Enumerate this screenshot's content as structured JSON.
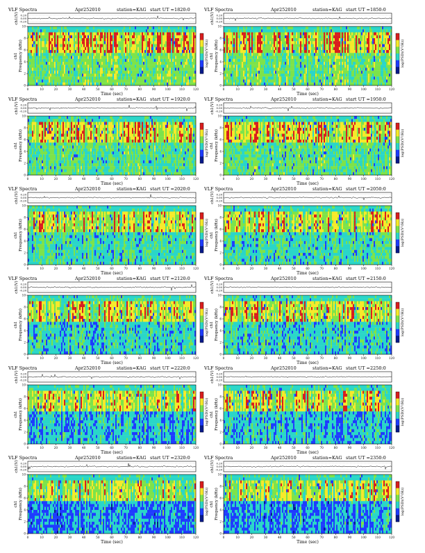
{
  "panel_labels": {
    "title_left": "VLF Spectra",
    "date": "Apr252010",
    "station": "station=KAG",
    "start_prefix": "start  UT  =",
    "waveform_ylabel": "ch1(V)",
    "spectrogram_ylabel_top": "ch1",
    "spectrogram_ylabel": "Frequency (kHz)",
    "xlabel": "Time (sec)",
    "colorbar_label": "log(PSD)(V²/Hz)"
  },
  "colors": {
    "low": "#1e3cff",
    "cyan": "#2ad6c8",
    "green": "#7de34a",
    "yellow": "#f6e92a",
    "red": "#d81e1e",
    "deep_blue": "#061a8c"
  },
  "chart_data": [
    {
      "type": "heatmap",
      "start_ut": "1820:0",
      "x_ticks": [
        0,
        10,
        20,
        30,
        40,
        50,
        60,
        70,
        80,
        90,
        100,
        110,
        120
      ],
      "y_ticks": [
        0,
        2,
        4,
        6,
        8,
        10
      ],
      "wave_ticks": [
        "0.20",
        "0.00",
        "-0.20"
      ],
      "xlim": [
        0,
        120
      ],
      "ylim": [
        0,
        10
      ]
    },
    {
      "type": "heatmap",
      "start_ut": "1850:0",
      "x_ticks": [
        0,
        10,
        20,
        30,
        40,
        50,
        60,
        70,
        80,
        90,
        100,
        110,
        120
      ],
      "y_ticks": [
        0,
        2,
        4,
        6,
        8,
        10
      ],
      "wave_ticks": [
        "0.20",
        "0.00",
        "-0.20"
      ],
      "xlim": [
        0,
        120
      ],
      "ylim": [
        0,
        10
      ]
    },
    {
      "type": "heatmap",
      "start_ut": "1920:0",
      "x_ticks": [
        0,
        10,
        20,
        30,
        40,
        50,
        60,
        70,
        80,
        90,
        100,
        110,
        120
      ],
      "y_ticks": [
        0,
        2,
        4,
        6,
        8,
        10
      ],
      "wave_ticks": [
        "0.20",
        "0.00",
        "-0.20"
      ],
      "xlim": [
        0,
        120
      ],
      "ylim": [
        0,
        10
      ]
    },
    {
      "type": "heatmap",
      "start_ut": "1950:0",
      "x_ticks": [
        0,
        10,
        20,
        30,
        40,
        50,
        60,
        70,
        80,
        90,
        100,
        110,
        120
      ],
      "y_ticks": [
        0,
        2,
        4,
        6,
        8,
        10
      ],
      "wave_ticks": [
        "0.20",
        "0.00",
        "-0.20"
      ],
      "xlim": [
        0,
        120
      ],
      "ylim": [
        0,
        10
      ]
    },
    {
      "type": "heatmap",
      "start_ut": "2020:0",
      "x_ticks": [
        0,
        10,
        20,
        30,
        40,
        50,
        60,
        70,
        80,
        90,
        100,
        110,
        120
      ],
      "y_ticks": [
        0,
        2,
        4,
        6,
        8,
        10
      ],
      "wave_ticks": [
        "0.20",
        "0.00",
        "-0.20"
      ],
      "xlim": [
        0,
        120
      ],
      "ylim": [
        0,
        10
      ]
    },
    {
      "type": "heatmap",
      "start_ut": "2050:0",
      "x_ticks": [
        0,
        10,
        20,
        30,
        40,
        50,
        60,
        70,
        80,
        90,
        100,
        110,
        120
      ],
      "y_ticks": [
        0,
        2,
        4,
        6,
        8,
        10
      ],
      "wave_ticks": [
        "0.20",
        "0.00",
        "-0.20"
      ],
      "xlim": [
        0,
        120
      ],
      "ylim": [
        0,
        10
      ]
    },
    {
      "type": "heatmap",
      "start_ut": "2120:0",
      "x_ticks": [
        0,
        10,
        20,
        30,
        40,
        50,
        60,
        70,
        80,
        90,
        100,
        110,
        120
      ],
      "y_ticks": [
        0,
        2,
        4,
        6,
        8,
        10
      ],
      "wave_ticks": [
        "0.20",
        "0.00",
        "-0.20"
      ],
      "xlim": [
        0,
        120
      ],
      "ylim": [
        0,
        10
      ]
    },
    {
      "type": "heatmap",
      "start_ut": "2150:0",
      "x_ticks": [
        0,
        10,
        20,
        30,
        40,
        50,
        60,
        70,
        80,
        90,
        100,
        110,
        120
      ],
      "y_ticks": [
        0,
        2,
        4,
        6,
        8,
        10
      ],
      "wave_ticks": [
        "0.20",
        "0.00",
        "-0.20"
      ],
      "xlim": [
        0,
        120
      ],
      "ylim": [
        0,
        10
      ]
    },
    {
      "type": "heatmap",
      "start_ut": "2220:0",
      "x_ticks": [
        0,
        10,
        20,
        30,
        40,
        50,
        60,
        70,
        80,
        90,
        100,
        110,
        120
      ],
      "y_ticks": [
        0,
        2,
        4,
        6,
        8,
        10
      ],
      "wave_ticks": [
        "0.20",
        "0.00",
        "-0.20"
      ],
      "xlim": [
        0,
        120
      ],
      "ylim": [
        0,
        10
      ]
    },
    {
      "type": "heatmap",
      "start_ut": "2250:0",
      "x_ticks": [
        0,
        10,
        20,
        30,
        40,
        50,
        60,
        70,
        80,
        90,
        100,
        110,
        120
      ],
      "y_ticks": [
        0,
        2,
        4,
        6,
        8,
        10
      ],
      "wave_ticks": [
        "0.20",
        "0.00",
        "-0.20"
      ],
      "xlim": [
        0,
        120
      ],
      "ylim": [
        0,
        10
      ]
    },
    {
      "type": "heatmap",
      "start_ut": "2320:0",
      "x_ticks": [
        0,
        10,
        20,
        30,
        40,
        50,
        60,
        70,
        80,
        90,
        100,
        110,
        120
      ],
      "y_ticks": [
        0,
        2,
        4,
        6,
        8,
        10
      ],
      "wave_ticks": [
        "0.20",
        "0.00",
        "-0.20"
      ],
      "xlim": [
        0,
        120
      ],
      "ylim": [
        0,
        10
      ]
    },
    {
      "type": "heatmap",
      "start_ut": "2350:0",
      "x_ticks": [
        0,
        10,
        20,
        30,
        40,
        50,
        60,
        70,
        80,
        90,
        100,
        110,
        120
      ],
      "y_ticks": [
        0,
        2,
        4,
        6,
        8,
        10
      ],
      "wave_ticks": [
        "0.20",
        "0.00",
        "-0.20"
      ],
      "xlim": [
        0,
        120
      ],
      "ylim": [
        0,
        10
      ]
    }
  ]
}
